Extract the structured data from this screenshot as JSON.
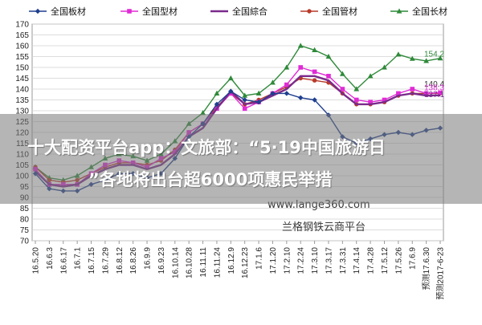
{
  "chart_data": {
    "type": "line",
    "title": "",
    "xlabel": "",
    "ylabel": "",
    "ylim": [
      70,
      170
    ],
    "yticks": [
      70,
      75,
      80,
      85,
      90,
      95,
      100,
      105,
      110,
      115,
      120,
      125,
      130,
      135,
      140,
      145,
      150,
      155,
      160,
      165,
      170
    ],
    "grid": true,
    "legend_position": "top",
    "categories": [
      "16.5.20",
      "16.6.3",
      "16.6.17",
      "16.7.1",
      "16.7.15",
      "16.7.29",
      "16.8.12",
      "16.8.26",
      "16.9.9",
      "16.9.23",
      "16.10.14",
      "16.10.28",
      "16.11.11",
      "16.11.24",
      "16.12.9",
      "16.12.23",
      "17.1.6",
      "17.1.20",
      "17.2.10",
      "17.2.24",
      "17.3.10",
      "17.3.17",
      "17.3.31",
      "17.4.14",
      "17.4.28",
      "17.5.12",
      "17.5.26",
      "17.6.9",
      "预测17.6.30",
      "预测2017-6-23"
    ],
    "series": [
      {
        "name": "全国板材",
        "color": "#1f3f8f",
        "marker": "diamond",
        "values": [
          101,
          94,
          93,
          93,
          96,
          98,
          101,
          101,
          99,
          101,
          108,
          118,
          124,
          133,
          139,
          135,
          134,
          138,
          138,
          136,
          135,
          128,
          118,
          115,
          117,
          119,
          120,
          119,
          121,
          122
        ]
      },
      {
        "name": "全国型材",
        "color": "#e02bd6",
        "marker": "square",
        "values": [
          103,
          96,
          96,
          96,
          101,
          105,
          107,
          106,
          104,
          108,
          111,
          120,
          124,
          131,
          138,
          131,
          134,
          138,
          142,
          150,
          148,
          146,
          140,
          135,
          134,
          135,
          138,
          140,
          138,
          138.3
        ]
      },
      {
        "name": "全国綜合",
        "color": "#7a2a8c",
        "marker": "none",
        "values": [
          102,
          96,
          95,
          96,
          100,
          103,
          105,
          105,
          103,
          105,
          110,
          118,
          122,
          131,
          139,
          133,
          134,
          137,
          140,
          146,
          146,
          144,
          138,
          133,
          133,
          134,
          137,
          138,
          137,
          137.1
        ]
      },
      {
        "name": "全国管材",
        "color": "#b83a2a",
        "marker": "circle",
        "values": [
          104,
          98,
          97,
          98,
          101,
          104,
          106,
          106,
          105,
          107,
          112,
          120,
          124,
          132,
          138,
          133,
          135,
          138,
          141,
          145,
          144,
          143,
          138,
          133,
          133,
          134,
          137,
          138,
          138,
          138
        ]
      },
      {
        "name": "全国长材",
        "color": "#2f8a3a",
        "marker": "triangle",
        "values": [
          104,
          99,
          98,
          100,
          104,
          108,
          110,
          109,
          107,
          110,
          116,
          124,
          129,
          138,
          145,
          137,
          138,
          143,
          150,
          160,
          158,
          155,
          147,
          140,
          146,
          150,
          156,
          154,
          153,
          154.2
        ]
      }
    ],
    "end_labels": [
      "154.2",
      "140.4",
      "138.3",
      "137.1"
    ]
  },
  "overlay": {
    "line1": "十大配资平台app：文旅部：“5·19中国旅游日",
    "line2": "”各地将出台超6000项惠民举措"
  },
  "watermark": {
    "site": "www.lange360.com",
    "company": "兰格钢铁云商平台"
  }
}
